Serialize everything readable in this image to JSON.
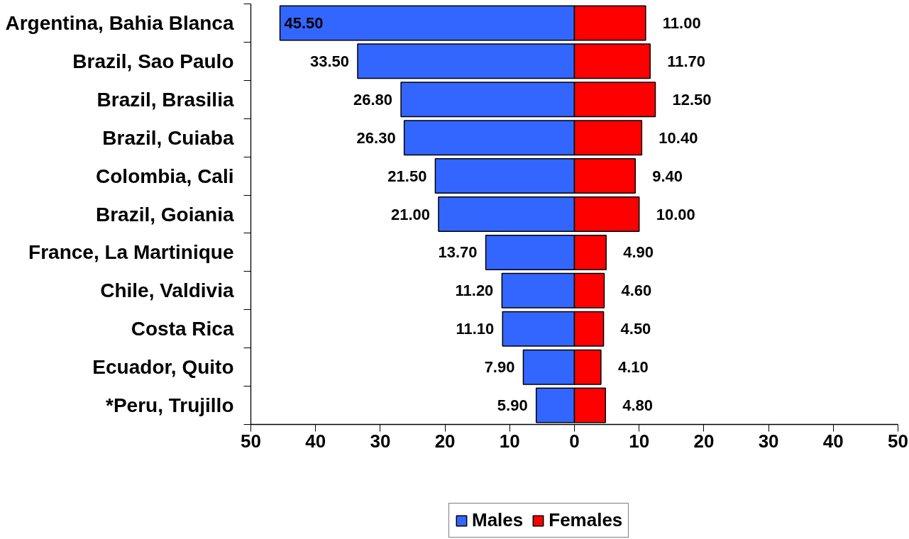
{
  "chart_data": {
    "type": "bar",
    "orientation": "horizontal",
    "categories": [
      "Argentina, Bahia Blanca",
      "Brazil, Sao Paulo",
      "Brazil, Brasilia",
      "Brazil, Cuiaba",
      "Colombia, Cali",
      "Brazil, Goiania",
      "France, La Martinique",
      "Chile, Valdivia",
      "Costa Rica",
      "Ecuador, Quito",
      "*Peru, Trujillo"
    ],
    "series": [
      {
        "name": "Males",
        "color": "#3366ff",
        "base": [
          -45.5,
          -33.5,
          -26.8,
          -26.3,
          -21.5,
          -21.0,
          -13.7,
          -11.2,
          -11.1,
          -7.9,
          -5.9
        ],
        "values": [
          45.5,
          33.5,
          26.8,
          26.3,
          21.5,
          21.0,
          13.7,
          11.2,
          11.1,
          7.9,
          5.9
        ],
        "value_labels": [
          "45.50",
          "33.50",
          "26.80",
          "26.30",
          "21.50",
          "21.00",
          "13.70",
          "11.20",
          "11.10",
          "7.90",
          "5.90"
        ]
      },
      {
        "name": "Females",
        "color": "#ff0000",
        "values": [
          11.0,
          11.7,
          12.5,
          10.4,
          9.4,
          10.0,
          4.9,
          4.6,
          4.5,
          4.1,
          4.8
        ],
        "value_labels": [
          "11.00",
          "11.70",
          "12.50",
          "10.40",
          "9.40",
          "10.00",
          "4.90",
          "4.60",
          "4.50",
          "4.10",
          "4.80"
        ]
      }
    ],
    "xlim": [
      -50,
      50
    ],
    "xticks": [
      {
        "value": -50,
        "label": "50"
      },
      {
        "value": -40,
        "label": "40"
      },
      {
        "value": -30,
        "label": "30"
      },
      {
        "value": -20,
        "label": "20"
      },
      {
        "value": -10,
        "label": "10"
      },
      0,
      10,
      20,
      30,
      40,
      50
    ],
    "legend": "bottom",
    "grid": false
  }
}
